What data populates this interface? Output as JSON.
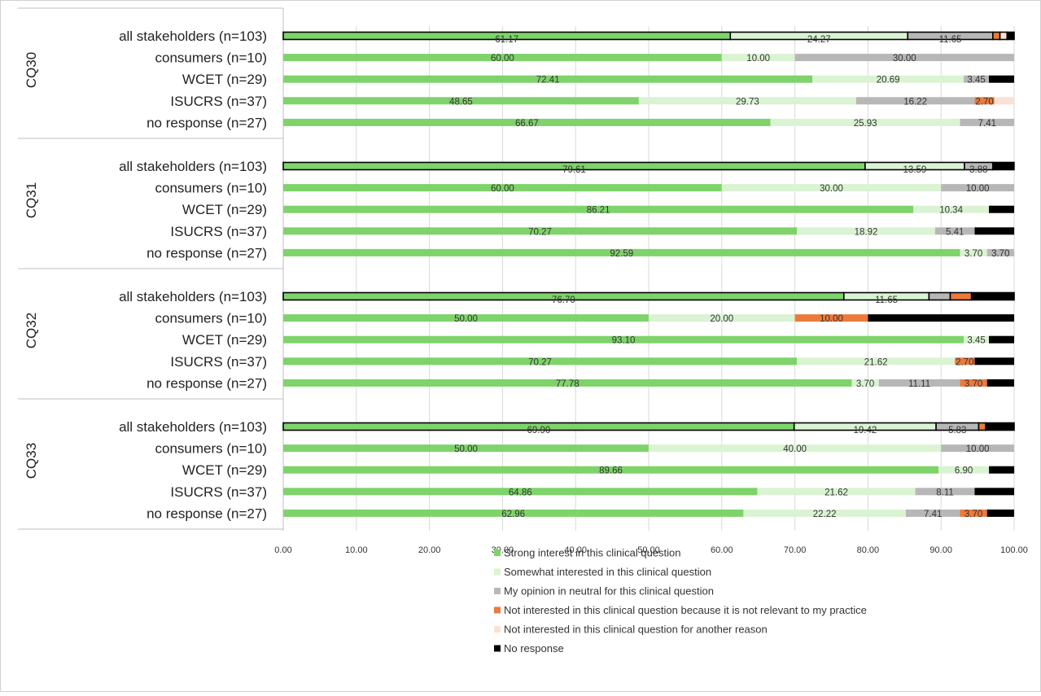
{
  "chart_data": {
    "type": "bar",
    "orientation": "horizontal",
    "stacked": true,
    "xlim": [
      0,
      100
    ],
    "x_ticks": [
      "0.00",
      "10.00",
      "20.00",
      "30.00",
      "40.00",
      "50.00",
      "60.00",
      "70.00",
      "80.00",
      "90.00",
      "100.00"
    ],
    "grid": true,
    "legend_position": "bottom",
    "series_colors": {
      "strong": "#7ed36a",
      "somewhat": "#daf3d3",
      "neutral": "#b7b7b7",
      "not_relevant": "#ec7a3b",
      "other_reason": "#fbe1d3",
      "no_response": "#000000"
    },
    "legend": [
      {
        "key": "strong",
        "label": "Strong interest in this clinical question"
      },
      {
        "key": "somewhat",
        "label": "Somewhat interested in this clinical question"
      },
      {
        "key": "neutral",
        "label": "My opinion in neutral for this clinical question"
      },
      {
        "key": "not_relevant",
        "label": "Not interested in this clinical question because it is not relevant to my practice"
      },
      {
        "key": "other_reason",
        "label": "Not interested in this clinical question for another reason"
      },
      {
        "key": "no_response",
        "label": "No response"
      }
    ],
    "groups": [
      {
        "name": "CQ30",
        "rows": [
          {
            "category": "all stakeholders (n=103)",
            "highlight": true,
            "values": {
              "strong": 61.17,
              "somewhat": 24.27,
              "neutral": 11.65,
              "not_relevant": 0.97,
              "other_reason": 0.97,
              "no_response": 0.97
            },
            "labels": {
              "strong": "61.17",
              "somewhat": "24.27",
              "neutral": "11.65"
            }
          },
          {
            "category": "consumers (n=10)",
            "highlight": false,
            "values": {
              "strong": 60.0,
              "somewhat": 10.0,
              "neutral": 30.0
            },
            "labels": {
              "strong": "60.00",
              "somewhat": "10.00",
              "neutral": "30.00"
            }
          },
          {
            "category": "WCET (n=29)",
            "highlight": false,
            "values": {
              "strong": 72.41,
              "somewhat": 20.69,
              "neutral": 3.45,
              "no_response": 3.45
            },
            "labels": {
              "strong": "72.41",
              "somewhat": "20.69",
              "neutral": "3.45"
            }
          },
          {
            "category": "ISUCRS (n=37)",
            "highlight": false,
            "values": {
              "strong": 48.65,
              "somewhat": 29.73,
              "neutral": 16.22,
              "not_relevant": 2.7,
              "other_reason": 2.7
            },
            "labels": {
              "strong": "48.65",
              "somewhat": "29.73",
              "neutral": "16.22",
              "not_relevant": "2.70"
            }
          },
          {
            "category": "no response (n=27)",
            "highlight": false,
            "values": {
              "strong": 66.67,
              "somewhat": 25.93,
              "neutral": 7.41
            },
            "labels": {
              "strong": "66.67",
              "somewhat": "25.93",
              "neutral": "7.41"
            }
          }
        ]
      },
      {
        "name": "CQ31",
        "rows": [
          {
            "category": "all stakeholders (n=103)",
            "highlight": true,
            "values": {
              "strong": 79.61,
              "somewhat": 13.59,
              "neutral": 3.88,
              "no_response": 2.91
            },
            "labels": {
              "strong": "79.61",
              "somewhat": "13.59",
              "neutral": "3.88"
            }
          },
          {
            "category": "consumers (n=10)",
            "highlight": false,
            "values": {
              "strong": 60.0,
              "somewhat": 30.0,
              "neutral": 10.0
            },
            "labels": {
              "strong": "60.00",
              "somewhat": "30.00",
              "neutral": "10.00"
            }
          },
          {
            "category": "WCET (n=29)",
            "highlight": false,
            "values": {
              "strong": 86.21,
              "somewhat": 10.34,
              "no_response": 3.45
            },
            "labels": {
              "strong": "86.21",
              "somewhat": "10.34"
            }
          },
          {
            "category": "ISUCRS (n=37)",
            "highlight": false,
            "values": {
              "strong": 70.27,
              "somewhat": 18.92,
              "neutral": 5.41,
              "no_response": 5.41
            },
            "labels": {
              "strong": "70.27",
              "somewhat": "18.92",
              "neutral": "5.41"
            }
          },
          {
            "category": "no response (n=27)",
            "highlight": false,
            "values": {
              "strong": 92.59,
              "somewhat": 3.7,
              "neutral": 3.7
            },
            "labels": {
              "strong": "92.59",
              "somewhat": "3.70",
              "neutral": "3.70"
            }
          }
        ]
      },
      {
        "name": "CQ32",
        "rows": [
          {
            "category": "all stakeholders (n=103)",
            "highlight": true,
            "values": {
              "strong": 76.7,
              "somewhat": 11.65,
              "neutral": 2.91,
              "not_relevant": 2.91,
              "no_response": 5.83
            },
            "labels": {
              "strong": "76.70",
              "somewhat": "11.65"
            }
          },
          {
            "category": "consumers (n=10)",
            "highlight": false,
            "values": {
              "strong": 50.0,
              "somewhat": 20.0,
              "not_relevant": 10.0,
              "no_response": 20.0
            },
            "labels": {
              "strong": "50.00",
              "somewhat": "20.00",
              "not_relevant": "10.00"
            }
          },
          {
            "category": "WCET (n=29)",
            "highlight": false,
            "values": {
              "strong": 93.1,
              "somewhat": 3.45,
              "no_response": 3.45
            },
            "labels": {
              "strong": "93.10",
              "somewhat": "3.45"
            }
          },
          {
            "category": "ISUCRS (n=37)",
            "highlight": false,
            "values": {
              "strong": 70.27,
              "somewhat": 21.62,
              "not_relevant": 2.7,
              "no_response": 5.41
            },
            "labels": {
              "strong": "70.27",
              "somewhat": "21.62",
              "not_relevant": "2.70"
            }
          },
          {
            "category": "no response (n=27)",
            "highlight": false,
            "values": {
              "strong": 77.78,
              "somewhat": 3.7,
              "neutral": 11.11,
              "not_relevant": 3.7,
              "no_response": 3.7
            },
            "labels": {
              "strong": "77.78",
              "somewhat": "3.70",
              "neutral": "11.11",
              "not_relevant": "3.70"
            }
          }
        ]
      },
      {
        "name": "CQ33",
        "rows": [
          {
            "category": "all stakeholders (n=103)",
            "highlight": true,
            "values": {
              "strong": 69.9,
              "somewhat": 19.42,
              "neutral": 5.83,
              "not_relevant": 0.97,
              "no_response": 3.88
            },
            "labels": {
              "strong": "69.90",
              "somewhat": "19.42",
              "neutral": "5.83"
            }
          },
          {
            "category": "consumers (n=10)",
            "highlight": false,
            "values": {
              "strong": 50.0,
              "somewhat": 40.0,
              "neutral": 10.0
            },
            "labels": {
              "strong": "50.00",
              "somewhat": "40.00",
              "neutral": "10.00"
            }
          },
          {
            "category": "WCET (n=29)",
            "highlight": false,
            "values": {
              "strong": 89.66,
              "somewhat": 6.9,
              "no_response": 3.45
            },
            "labels": {
              "strong": "89.66",
              "somewhat": "6.90"
            }
          },
          {
            "category": "ISUCRS (n=37)",
            "highlight": false,
            "values": {
              "strong": 64.86,
              "somewhat": 21.62,
              "neutral": 8.11,
              "no_response": 5.41
            },
            "labels": {
              "strong": "64.86",
              "somewhat": "21.62",
              "neutral": "8.11"
            }
          },
          {
            "category": "no response (n=27)",
            "highlight": false,
            "values": {
              "strong": 62.96,
              "somewhat": 22.22,
              "neutral": 7.41,
              "not_relevant": 3.7,
              "no_response": 3.7
            },
            "labels": {
              "strong": "62.96",
              "somewhat": "22.22",
              "neutral": "7.41",
              "not_relevant": "3.70"
            }
          }
        ]
      }
    ]
  }
}
